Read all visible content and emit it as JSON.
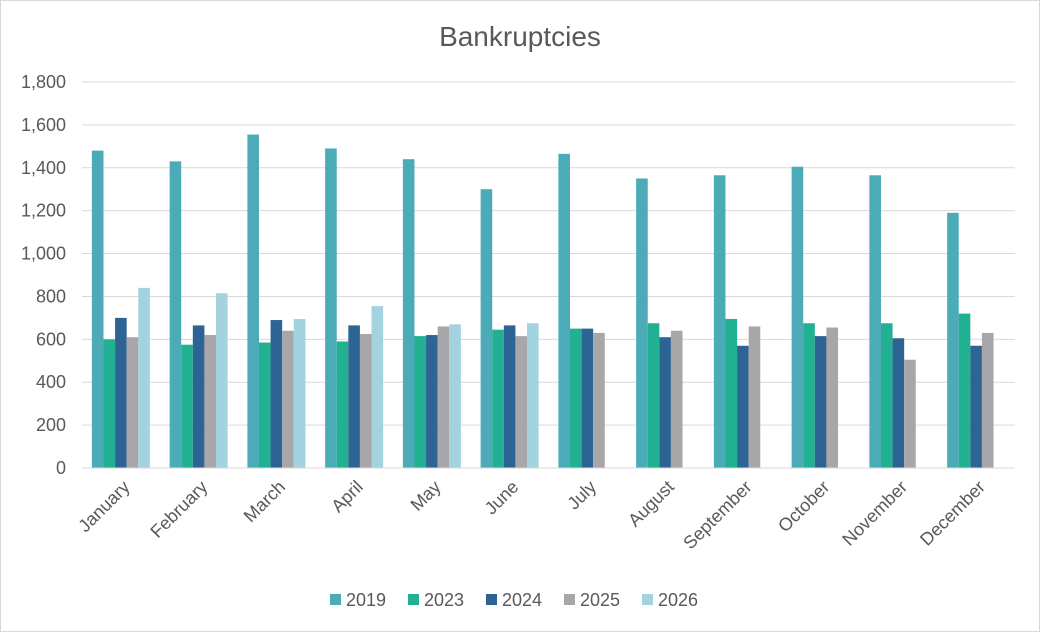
{
  "chart_data": {
    "type": "bar",
    "title": "Bankruptcies",
    "xlabel": "",
    "ylabel": "",
    "ylim": [
      0,
      1800
    ],
    "yticks": [
      "0",
      "200",
      "400",
      "600",
      "800",
      "1,000",
      "1,200",
      "1,400",
      "1,600",
      "1,800"
    ],
    "grid": true,
    "legend_position": "bottom",
    "categories": [
      "January",
      "February",
      "March",
      "April",
      "May",
      "June",
      "July",
      "August",
      "September",
      "October",
      "November",
      "December"
    ],
    "series": [
      {
        "name": "2019",
        "color": "#4bacb8",
        "values": [
          1480,
          1430,
          1555,
          1490,
          1440,
          1300,
          1465,
          1350,
          1365,
          1405,
          1365,
          1190
        ]
      },
      {
        "name": "2023",
        "color": "#21b092",
        "values": [
          600,
          575,
          585,
          590,
          615,
          645,
          650,
          675,
          695,
          675,
          675,
          720
        ]
      },
      {
        "name": "2024",
        "color": "#2e6494",
        "values": [
          700,
          665,
          690,
          665,
          620,
          665,
          650,
          610,
          570,
          615,
          605,
          570
        ]
      },
      {
        "name": "2025",
        "color": "#a8a6a8",
        "values": [
          610,
          620,
          640,
          625,
          660,
          615,
          630,
          640,
          660,
          655,
          505,
          630
        ]
      },
      {
        "name": "2026",
        "color": "#a3d3de",
        "values": [
          840,
          815,
          695,
          755,
          670,
          675,
          null,
          null,
          null,
          null,
          null,
          null
        ]
      }
    ]
  }
}
